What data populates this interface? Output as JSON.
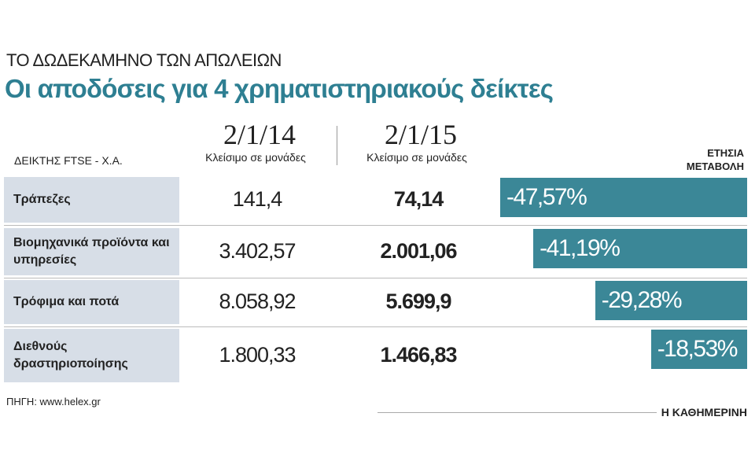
{
  "header": {
    "kicker": "ΤΟ ΔΩΔΕΚΑΜΗΝΟ ΤΩΝ ΑΠΩΛΕΙΩΝ",
    "title": "Οι αποδόσεις για 4 χρηματιστηριακούς δείκτες"
  },
  "table": {
    "row_header": "ΔΕΙΚΤΗΣ FTSE - Χ.Α.",
    "change_header": "ΕΤΗΣΙΑ ΜΕΤΑΒΟΛΗ",
    "columns": [
      {
        "date": "2/1/14",
        "subtitle": "Κλείσιμο σε μονάδες"
      },
      {
        "date": "2/1/15",
        "subtitle": "Κλείσιμο σε μονάδες"
      }
    ],
    "rows": [
      {
        "name": "Τράπεζες",
        "close_2014": "141,4",
        "close_2015": "74,14",
        "change": {
          "value": -47.57,
          "label": "-47,57%"
        }
      },
      {
        "name": "Βιομηχανικά προϊόντα και υπηρεσίες",
        "close_2014": "3.402,57",
        "close_2015": "2.001,06",
        "change": {
          "value": -41.19,
          "label": "-41,19%"
        }
      },
      {
        "name": "Τρόφιμα και ποτά",
        "close_2014": "8.058,92",
        "close_2015": "5.699,9",
        "change": {
          "value": -29.28,
          "label": "-29,28%"
        }
      },
      {
        "name": "Διεθνούς δραστηριοποίησης",
        "close_2014": "1.800,33",
        "close_2015": "1.466,83",
        "change": {
          "value": -18.53,
          "label": "-18,53%"
        }
      }
    ]
  },
  "footer": {
    "source": "ΠΗΓΗ: www.helex.gr",
    "brand": "Η ΚΑΘΗΜΕΡΙΝΗ"
  }
}
